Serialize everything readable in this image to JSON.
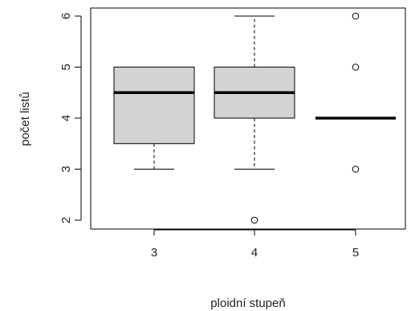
{
  "chart_data": {
    "type": "box",
    "xlabel": "ploidní stupeň",
    "ylabel": "počet listů",
    "ylim": [
      1.82,
      6.18
    ],
    "y_ticks": [
      2,
      3,
      4,
      5,
      6
    ],
    "categories": [
      "3",
      "4",
      "5"
    ],
    "boxes": [
      {
        "category": "3",
        "whisker_low": 3,
        "q1": 3.5,
        "median": 4.5,
        "q3": 5,
        "whisker_high": 5,
        "outliers": []
      },
      {
        "category": "4",
        "whisker_low": 3,
        "q1": 4,
        "median": 4.5,
        "q3": 5,
        "whisker_high": 6,
        "outliers": [
          2
        ]
      },
      {
        "category": "5",
        "whisker_low": 4,
        "q1": 4,
        "median": 4,
        "q3": 4,
        "whisker_high": 4,
        "outliers": [
          3,
          5,
          6
        ]
      }
    ],
    "box_fill": "#d3d3d3",
    "line_color": "#000000",
    "grid": false
  }
}
